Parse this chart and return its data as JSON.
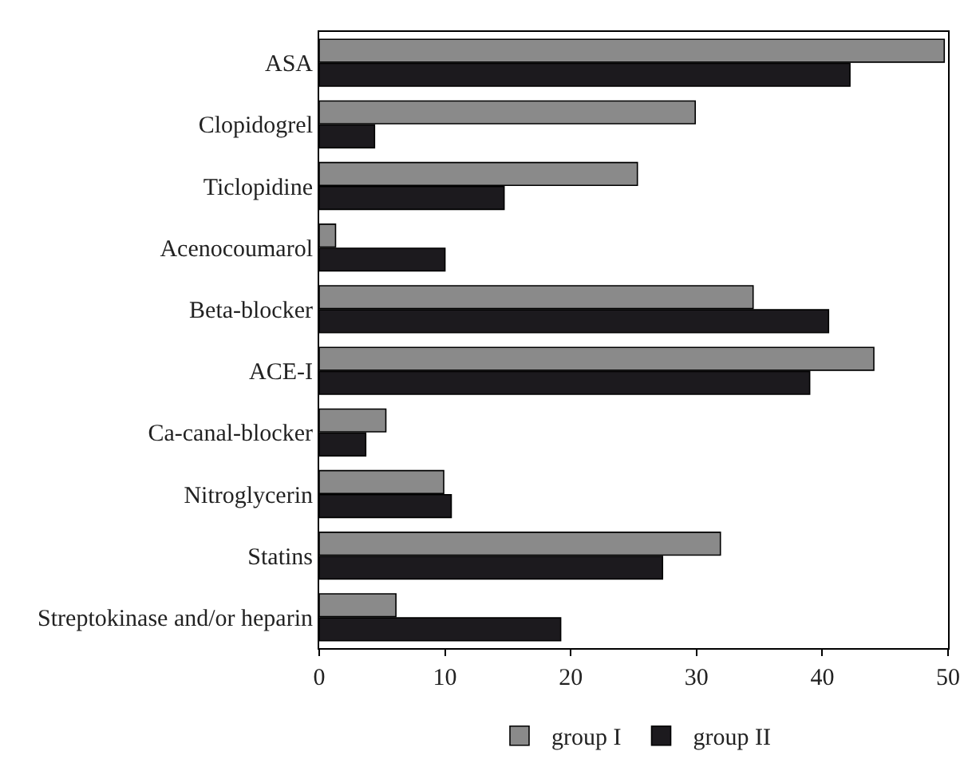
{
  "chart_data": {
    "type": "bar",
    "orientation": "horizontal",
    "categories": [
      "ASA",
      "Clopidogrel",
      "Ticlopidine",
      "Acenocoumarol",
      "Beta-blocker",
      "ACE-I",
      "Ca-canal-blocker",
      "Nitroglycerin",
      "Statins",
      "Streptokinase and/or heparin"
    ],
    "series": [
      {
        "name": "group I",
        "color": "#8a8a8a",
        "values": [
          49.7,
          29.9,
          25.3,
          1.3,
          34.5,
          44.1,
          5.3,
          9.9,
          31.9,
          6.1
        ]
      },
      {
        "name": "group II",
        "color": "#1c1a1e",
        "values": [
          42.2,
          4.4,
          14.7,
          10.0,
          40.5,
          39.0,
          3.7,
          10.5,
          27.3,
          19.2
        ]
      }
    ],
    "xlim": [
      0,
      50
    ],
    "xticks": [
      0,
      10,
      20,
      30,
      40,
      50
    ],
    "grid": false,
    "legend": "bottom"
  }
}
